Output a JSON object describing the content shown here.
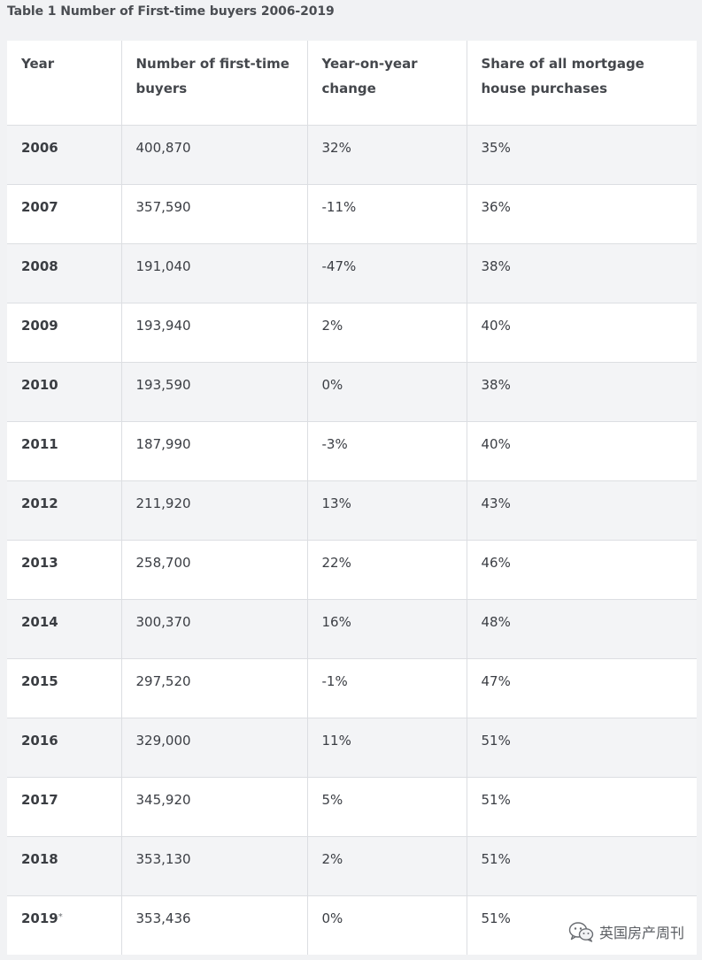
{
  "caption": "Table 1 Number of First-time buyers 2006-2019",
  "table": {
    "headers": [
      "Year",
      "Number of first-time buyers",
      "Year-on-year change",
      "Share of all mortgage house purchases"
    ],
    "rows": [
      {
        "year": "2006",
        "buyers": "400,870",
        "yoy": "32%",
        "share": "35%"
      },
      {
        "year": "2007",
        "buyers": "357,590",
        "yoy": "-11%",
        "share": "36%"
      },
      {
        "year": "2008",
        "buyers": "191,040",
        "yoy": "-47%",
        "share": "38%"
      },
      {
        "year": "2009",
        "buyers": "193,940",
        "yoy": "2%",
        "share": "40%"
      },
      {
        "year": "2010",
        "buyers": "193,590",
        "yoy": "0%",
        "share": "38%"
      },
      {
        "year": "2011",
        "buyers": "187,990",
        "yoy": "-3%",
        "share": "40%"
      },
      {
        "year": "2012",
        "buyers": "211,920",
        "yoy": "13%",
        "share": "43%"
      },
      {
        "year": "2013",
        "buyers": "258,700",
        "yoy": "22%",
        "share": "46%"
      },
      {
        "year": "2014",
        "buyers": "300,370",
        "yoy": "16%",
        "share": "48%"
      },
      {
        "year": "2015",
        "buyers": "297,520",
        "yoy": "-1%",
        "share": "47%"
      },
      {
        "year": "2016",
        "buyers": "329,000",
        "yoy": "11%",
        "share": "51%"
      },
      {
        "year": "2017",
        "buyers": "345,920",
        "yoy": "5%",
        "share": "51%"
      },
      {
        "year": "2018",
        "buyers": "353,130",
        "yoy": "2%",
        "share": "51%"
      },
      {
        "year": "2019",
        "year_note": "*",
        "buyers": "353,436",
        "yoy": "0%",
        "share": "51%"
      }
    ]
  },
  "watermark": {
    "text": "英国房产周刊",
    "icon": "wechat-icon"
  },
  "colors": {
    "page_background": "#f1f2f4",
    "row_shaded": "#f3f4f6",
    "row_white": "#ffffff",
    "grid": "#dcdee2"
  }
}
